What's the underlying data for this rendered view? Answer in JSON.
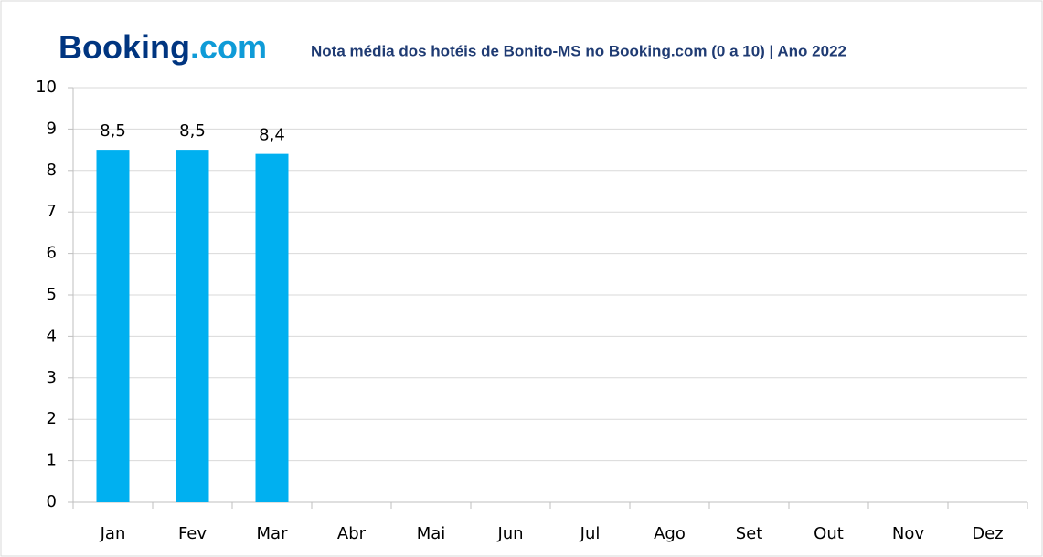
{
  "chart_data": {
    "type": "bar",
    "logo": [
      "Booking",
      ".com"
    ],
    "title": "Nota média dos hotéis de Bonito-MS no Booking.com (0 a 10) | Ano 2022",
    "categories": [
      "Jan",
      "Fev",
      "Mar",
      "Abr",
      "Mai",
      "Jun",
      "Jul",
      "Ago",
      "Set",
      "Out",
      "Nov",
      "Dez"
    ],
    "values": [
      8.5,
      8.5,
      8.4,
      null,
      null,
      null,
      null,
      null,
      null,
      null,
      null,
      null
    ],
    "value_labels": [
      "8,5",
      "8,5",
      "8,4",
      null,
      null,
      null,
      null,
      null,
      null,
      null,
      null,
      null
    ],
    "color": "#00b0f0",
    "ylim": [
      0,
      10
    ],
    "yticks": [
      0,
      1,
      2,
      3,
      4,
      5,
      6,
      7,
      8,
      9,
      10
    ],
    "grid": true
  }
}
